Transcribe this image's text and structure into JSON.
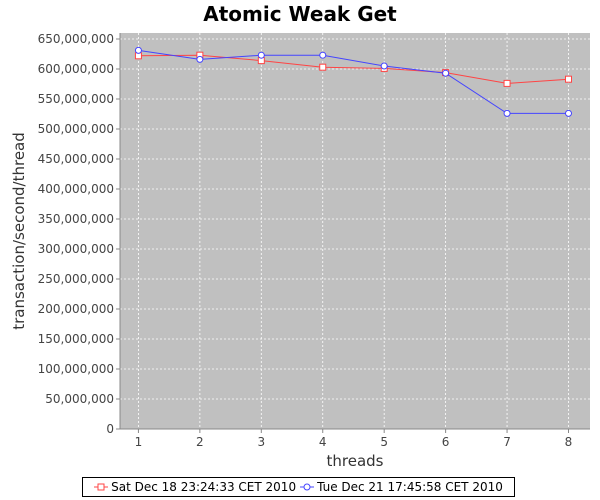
{
  "chart_data": {
    "type": "line",
    "title": "Atomic Weak Get",
    "xlabel": "threads",
    "ylabel": "transaction/second/thread",
    "x": [
      1,
      2,
      3,
      4,
      5,
      6,
      7,
      8
    ],
    "xticks": [
      "1",
      "2",
      "3",
      "4",
      "5",
      "6",
      "7",
      "8"
    ],
    "xlim": [
      0.7,
      8.35
    ],
    "ylim": [
      0,
      660000000
    ],
    "yticks": [
      0,
      50000000,
      100000000,
      150000000,
      200000000,
      250000000,
      300000000,
      350000000,
      400000000,
      450000000,
      500000000,
      550000000,
      600000000,
      650000000
    ],
    "yticklabels": [
      "0",
      "50,000,000",
      "100,000,000",
      "150,000,000",
      "200,000,000",
      "250,000,000",
      "300,000,000",
      "350,000,000",
      "400,000,000",
      "450,000,000",
      "500,000,000",
      "550,000,000",
      "600,000,000",
      "650,000,000"
    ],
    "grid": true,
    "legend_position": "bottom",
    "plot_background": "#c0c0c0",
    "series": [
      {
        "name": "Sat Dec 18 23:24:33 CET 2010",
        "color": "#ff4444",
        "marker": "square",
        "values": [
          622000000,
          623000000,
          614000000,
          603000000,
          601000000,
          594000000,
          576000000,
          583000000
        ]
      },
      {
        "name": "Tue Dec 21 17:45:58 CET 2010",
        "color": "#4444ff",
        "marker": "circle",
        "values": [
          631000000,
          616000000,
          623000000,
          623000000,
          605000000,
          593000000,
          526000000,
          526000000
        ]
      }
    ]
  }
}
